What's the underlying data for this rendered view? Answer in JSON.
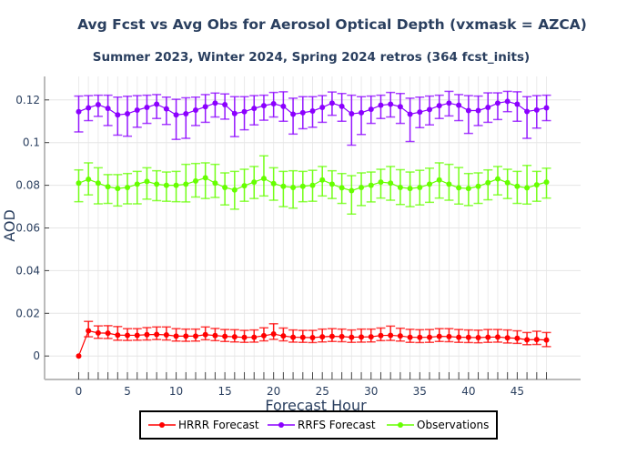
{
  "chart_data": {
    "type": "line",
    "title": "Avg Fcst vs Avg Obs for Aerosol Optical Depth (vxmask = AZCA)",
    "subtitle": "Summer 2023, Winter 2024, Spring 2024 retros (364 fcst_inits)",
    "xlabel": "Forecast Hour",
    "ylabel": "AOD",
    "xlim": [
      -3.5,
      51.5
    ],
    "ylim": [
      -0.011,
      0.131
    ],
    "xticks": [
      0,
      5,
      10,
      15,
      20,
      25,
      30,
      35,
      40,
      45
    ],
    "xtick_labels": [
      "0",
      "5",
      "10",
      "15",
      "20",
      "25",
      "30",
      "35",
      "40",
      "45"
    ],
    "yticks": [
      0,
      0.02,
      0.04,
      0.06,
      0.08,
      0.1,
      0.12
    ],
    "ytick_labels": [
      "0",
      "0.02",
      "0.04",
      "0.06",
      "0.08",
      "0.1",
      "0.12"
    ],
    "grid": true,
    "legend_position": "bottom-center",
    "x": [
      0,
      1,
      2,
      3,
      4,
      5,
      6,
      7,
      8,
      9,
      10,
      11,
      12,
      13,
      14,
      15,
      16,
      17,
      18,
      19,
      20,
      21,
      22,
      23,
      24,
      25,
      26,
      27,
      28,
      29,
      30,
      31,
      32,
      33,
      34,
      35,
      36,
      37,
      38,
      39,
      40,
      41,
      42,
      43,
      44,
      45,
      46,
      47,
      48
    ],
    "series": [
      {
        "name": "HRRR Forecast",
        "color": "#ff0000",
        "values": [
          0.0,
          0.0118,
          0.0108,
          0.0107,
          0.0098,
          0.0097,
          0.0097,
          0.01,
          0.0101,
          0.0099,
          0.0093,
          0.0093,
          0.0093,
          0.01,
          0.0096,
          0.0092,
          0.009,
          0.0087,
          0.0088,
          0.0095,
          0.0103,
          0.0094,
          0.0088,
          0.0087,
          0.0086,
          0.009,
          0.0092,
          0.0091,
          0.0088,
          0.0089,
          0.009,
          0.0096,
          0.0097,
          0.0094,
          0.0088,
          0.0087,
          0.0088,
          0.0092,
          0.0091,
          0.0088,
          0.0087,
          0.0086,
          0.0088,
          0.0089,
          0.0085,
          0.0083,
          0.0076,
          0.0077,
          0.0075
        ],
        "error_low": [
          0.0,
          0.009,
          0.0083,
          0.0082,
          0.0074,
          0.0073,
          0.0074,
          0.0075,
          0.0077,
          0.0075,
          0.007,
          0.0069,
          0.007,
          0.0076,
          0.0072,
          0.0068,
          0.0066,
          0.0064,
          0.0065,
          0.0071,
          0.0078,
          0.0071,
          0.0065,
          0.0064,
          0.0063,
          0.0066,
          0.0068,
          0.0067,
          0.0064,
          0.0065,
          0.0066,
          0.0072,
          0.0073,
          0.007,
          0.0064,
          0.0063,
          0.0064,
          0.0068,
          0.0067,
          0.0064,
          0.0063,
          0.0062,
          0.0064,
          0.0065,
          0.0061,
          0.0059,
          0.0053,
          0.0054,
          0.0044
        ],
        "error_high": [
          0.0,
          0.0162,
          0.0141,
          0.0142,
          0.0138,
          0.0128,
          0.0128,
          0.0133,
          0.0136,
          0.0136,
          0.0128,
          0.0126,
          0.0126,
          0.0136,
          0.0129,
          0.0124,
          0.0123,
          0.012,
          0.0122,
          0.0132,
          0.0151,
          0.0131,
          0.0122,
          0.012,
          0.012,
          0.0126,
          0.0128,
          0.0126,
          0.0122,
          0.0126,
          0.0126,
          0.0131,
          0.014,
          0.013,
          0.0125,
          0.0123,
          0.0124,
          0.0128,
          0.0128,
          0.0124,
          0.0122,
          0.0121,
          0.0124,
          0.0124,
          0.0122,
          0.0118,
          0.011,
          0.0116,
          0.011
        ]
      },
      {
        "name": "RRFS Forecast",
        "color": "#8b00ff",
        "values": [
          0.1145,
          0.1163,
          0.1178,
          0.116,
          0.113,
          0.1135,
          0.1152,
          0.1165,
          0.118,
          0.1158,
          0.113,
          0.1135,
          0.1152,
          0.1168,
          0.1185,
          0.1178,
          0.1136,
          0.1145,
          0.116,
          0.1173,
          0.1182,
          0.117,
          0.1133,
          0.114,
          0.1148,
          0.1165,
          0.1185,
          0.117,
          0.1135,
          0.114,
          0.1156,
          0.1175,
          0.118,
          0.1168,
          0.1133,
          0.1143,
          0.1155,
          0.1173,
          0.1185,
          0.1175,
          0.115,
          0.115,
          0.1165,
          0.1185,
          0.1193,
          0.118,
          0.1146,
          0.1153,
          0.1163
        ],
        "error_low": [
          0.105,
          0.1103,
          0.1123,
          0.108,
          0.1035,
          0.103,
          0.1072,
          0.109,
          0.1113,
          0.1085,
          0.1015,
          0.102,
          0.108,
          0.1095,
          0.112,
          0.111,
          0.1028,
          0.106,
          0.1083,
          0.1105,
          0.112,
          0.11,
          0.104,
          0.1065,
          0.1072,
          0.1095,
          0.1128,
          0.11,
          0.0988,
          0.1038,
          0.109,
          0.1113,
          0.112,
          0.109,
          0.1005,
          0.107,
          0.1083,
          0.1113,
          0.1125,
          0.1103,
          0.1043,
          0.108,
          0.1095,
          0.1108,
          0.1145,
          0.11,
          0.102,
          0.1068,
          0.1103
        ],
        "error_high": [
          0.1218,
          0.122,
          0.1222,
          0.1222,
          0.1213,
          0.1217,
          0.122,
          0.1222,
          0.1225,
          0.1213,
          0.1203,
          0.121,
          0.1213,
          0.1225,
          0.1232,
          0.1228,
          0.1215,
          0.1215,
          0.122,
          0.1222,
          0.1235,
          0.1238,
          0.1208,
          0.1215,
          0.1215,
          0.122,
          0.1237,
          0.123,
          0.1222,
          0.1215,
          0.1218,
          0.1222,
          0.1235,
          0.123,
          0.1208,
          0.1213,
          0.1218,
          0.1222,
          0.124,
          0.1225,
          0.122,
          0.1218,
          0.1233,
          0.1233,
          0.124,
          0.1238,
          0.1215,
          0.122,
          0.1222
        ]
      },
      {
        "name": "Observations",
        "color": "#66ff00",
        "values": [
          0.081,
          0.0828,
          0.081,
          0.0793,
          0.0785,
          0.079,
          0.0805,
          0.0818,
          0.0805,
          0.08,
          0.08,
          0.0805,
          0.082,
          0.0835,
          0.081,
          0.079,
          0.0778,
          0.0798,
          0.0815,
          0.0832,
          0.0808,
          0.0795,
          0.079,
          0.0795,
          0.08,
          0.0825,
          0.0805,
          0.0788,
          0.0775,
          0.079,
          0.08,
          0.0815,
          0.081,
          0.079,
          0.0785,
          0.079,
          0.0805,
          0.0825,
          0.0805,
          0.0788,
          0.0785,
          0.0795,
          0.0812,
          0.083,
          0.0812,
          0.0795,
          0.0788,
          0.0802,
          0.0815
        ],
        "error_low": [
          0.0723,
          0.0755,
          0.0713,
          0.0715,
          0.0703,
          0.0713,
          0.0713,
          0.0735,
          0.0728,
          0.0725,
          0.0723,
          0.0722,
          0.0745,
          0.0738,
          0.0743,
          0.0708,
          0.0688,
          0.0725,
          0.0738,
          0.075,
          0.073,
          0.07,
          0.0693,
          0.0723,
          0.0725,
          0.075,
          0.0738,
          0.0715,
          0.0665,
          0.0705,
          0.0722,
          0.074,
          0.073,
          0.071,
          0.07,
          0.0708,
          0.072,
          0.074,
          0.073,
          0.0712,
          0.0705,
          0.0715,
          0.0732,
          0.0755,
          0.0738,
          0.0715,
          0.0712,
          0.0725,
          0.074
        ],
        "error_high": [
          0.0872,
          0.0905,
          0.0882,
          0.085,
          0.085,
          0.0855,
          0.0865,
          0.0882,
          0.0868,
          0.0862,
          0.0865,
          0.0898,
          0.0902,
          0.0905,
          0.0898,
          0.0858,
          0.0865,
          0.0875,
          0.0888,
          0.0938,
          0.0882,
          0.0865,
          0.0868,
          0.0865,
          0.087,
          0.0888,
          0.0868,
          0.0855,
          0.0845,
          0.0858,
          0.0862,
          0.0875,
          0.0888,
          0.0873,
          0.0862,
          0.087,
          0.088,
          0.0905,
          0.0898,
          0.0883,
          0.0855,
          0.0858,
          0.0872,
          0.0888,
          0.0875,
          0.0865,
          0.0893,
          0.0865,
          0.088
        ]
      }
    ]
  }
}
